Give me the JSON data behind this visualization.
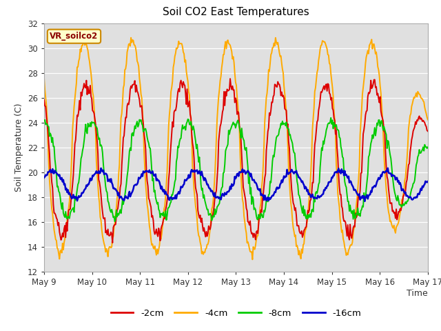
{
  "title": "Soil CO2 East Temperatures",
  "xlabel": "Time",
  "ylabel": "Soil Temperature (C)",
  "ylim": [
    12,
    32
  ],
  "xlim": [
    0,
    192
  ],
  "annotation": "VR_soilco2",
  "bg_color": "#e0e0e0",
  "grid_color": "#ffffff",
  "fig_color": "#ffffff",
  "series": {
    "-2cm": {
      "color": "#dd0000",
      "lw": 1.4
    },
    "-4cm": {
      "color": "#ffaa00",
      "lw": 1.4
    },
    "-8cm": {
      "color": "#00cc00",
      "lw": 1.4
    },
    "-16cm": {
      "color": "#0000cc",
      "lw": 1.8
    }
  },
  "xtick_labels": [
    "May 9",
    "May 10",
    "May 11",
    "May 12",
    "May 13",
    "May 14",
    "May 15",
    "May 16",
    "May 17"
  ],
  "xtick_positions": [
    0,
    24,
    48,
    72,
    96,
    120,
    144,
    168,
    192
  ]
}
